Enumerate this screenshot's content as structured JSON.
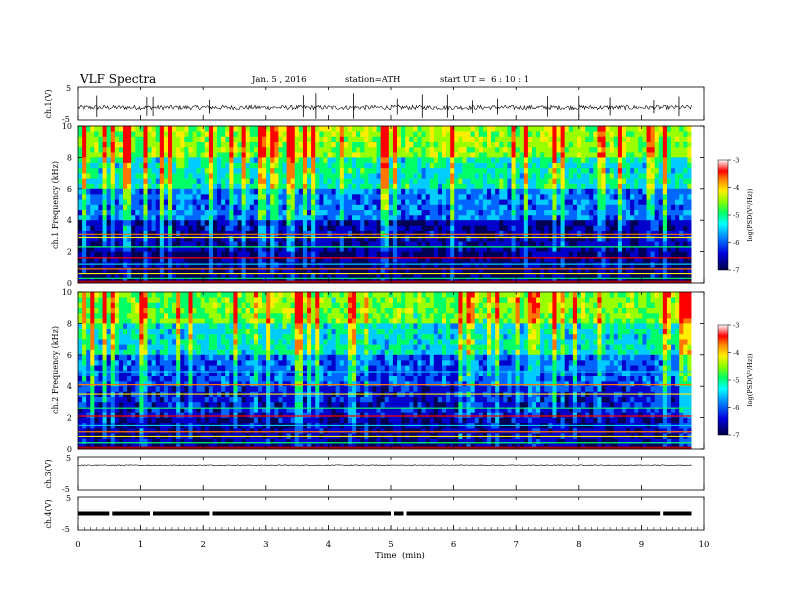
{
  "header": {
    "title": "VLF Spectra",
    "date": "Jan. 5 , 2016",
    "station": "station=ATH",
    "start": "start UT =  6 : 10 : 1"
  },
  "colors": {
    "axes": "#000000",
    "colormap": [
      "#000055",
      "#0000cc",
      "#0066ff",
      "#00ccff",
      "#00ff66",
      "#99ff00",
      "#ffee00",
      "#ff7700",
      "#ff0000",
      "#ffffff"
    ]
  },
  "chart_data": [
    {
      "type": "line",
      "panel": "ch1-waveform",
      "ylabel": "ch.1(V)",
      "ylim": [
        -5,
        5
      ],
      "yticks": [
        "5",
        "-5"
      ],
      "x_range_min": [
        0,
        9.8
      ],
      "baseline_v": -1.2,
      "spikes_min": [
        0.3,
        1.1,
        1.2,
        2.1,
        3.6,
        3.8,
        4.4,
        5.1,
        5.5,
        5.9,
        6.3,
        6.7,
        7.5,
        8.0,
        8.5,
        9.2,
        9.6
      ]
    },
    {
      "type": "heatmap",
      "panel": "ch1-spectrogram",
      "ylabel": "ch.1 Frequency (kHz)",
      "ylim": [
        0,
        10
      ],
      "yticks": [
        "0",
        "2",
        "4",
        "6",
        "8",
        "10"
      ],
      "x_range_min": [
        0,
        9.8
      ],
      "colorbar": {
        "label": "log(PSD(V²/Hz))",
        "range": [
          -7,
          -3
        ],
        "ticks": [
          "-3",
          "-4",
          "-5",
          "-6",
          "-7"
        ]
      },
      "bands": [
        {
          "kHz": [
            8.0,
            10.0
          ],
          "log_psd": -4.8
        },
        {
          "kHz": [
            6.0,
            8.0
          ],
          "log_psd": -5.4
        },
        {
          "kHz": [
            4.0,
            6.0
          ],
          "log_psd": -6.0
        },
        {
          "kHz": [
            2.0,
            4.0
          ],
          "log_psd": -6.6
        },
        {
          "kHz": [
            0.0,
            2.0
          ],
          "log_psd": -6.8
        }
      ],
      "lines_kHz": [
        0.3,
        0.6,
        0.9,
        1.2,
        1.6,
        2.3,
        2.9,
        3.1
      ]
    },
    {
      "type": "heatmap",
      "panel": "ch2-spectrogram",
      "ylabel": "ch.2 Frequency (kHz)",
      "ylim": [
        0,
        10
      ],
      "yticks": [
        "0",
        "2",
        "4",
        "6",
        "8",
        "10"
      ],
      "x_range_min": [
        0,
        9.8
      ],
      "colorbar": {
        "label": "log(PSD(V²/Hz))",
        "range": [
          -7,
          -3
        ],
        "ticks": [
          "-3",
          "-4",
          "-5",
          "-6",
          "-7"
        ]
      },
      "bands": [
        {
          "kHz": [
            8.0,
            10.0
          ],
          "log_psd": -4.9
        },
        {
          "kHz": [
            6.0,
            8.0
          ],
          "log_psd": -5.5
        },
        {
          "kHz": [
            4.0,
            6.0
          ],
          "log_psd": -6.1
        },
        {
          "kHz": [
            2.0,
            4.0
          ],
          "log_psd": -6.4
        },
        {
          "kHz": [
            0.0,
            2.0
          ],
          "log_psd": -6.6
        }
      ],
      "lines_kHz": [
        0.4,
        0.8,
        1.1,
        1.5,
        2.1,
        2.6,
        3.5,
        4.1,
        4.9
      ]
    },
    {
      "type": "line",
      "panel": "ch3-waveform",
      "ylabel": "ch.3(V)",
      "ylim": [
        -5,
        5
      ],
      "yticks": [
        "5",
        "-5"
      ],
      "x_range_min": [
        0,
        9.8
      ],
      "baseline_v": 2.5
    },
    {
      "type": "line",
      "panel": "ch4-waveform",
      "ylabel": "ch.4(V)",
      "ylim": [
        -5,
        5
      ],
      "yticks": [
        "5",
        "-5"
      ],
      "x_range_min": [
        0,
        9.8
      ],
      "baseline_v": 0,
      "gaps_min": [
        0.5,
        1.15,
        2.1,
        5.0,
        5.2,
        9.3
      ]
    }
  ],
  "xaxis": {
    "label": "Time  (min)",
    "xlim": [
      0,
      10
    ],
    "ticks": [
      "0",
      "1",
      "2",
      "3",
      "4",
      "5",
      "6",
      "7",
      "8",
      "9",
      "10"
    ]
  }
}
